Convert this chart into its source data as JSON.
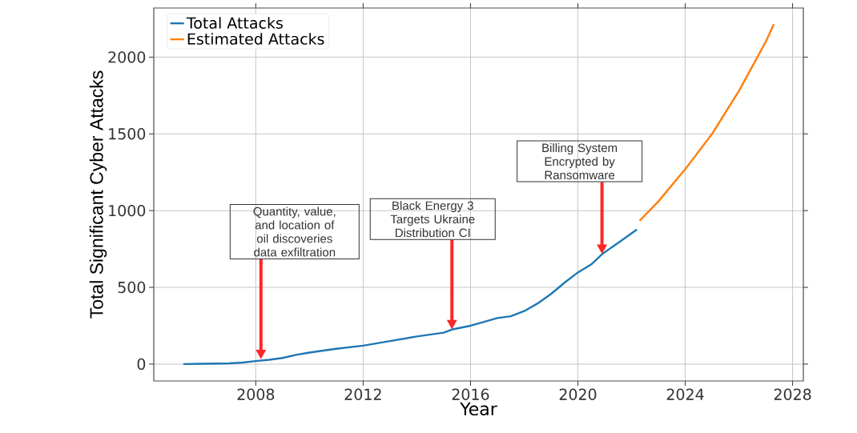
{
  "chart_data": {
    "type": "line",
    "xlabel": "Year",
    "ylabel": "Total Significant Cyber Attacks",
    "xlim": [
      2004.2,
      2028.4
    ],
    "ylim": [
      -110,
      2320
    ],
    "xticks": [
      2008,
      2012,
      2016,
      2020,
      2024,
      2028
    ],
    "yticks": [
      0,
      500,
      1000,
      1500,
      2000
    ],
    "grid": true,
    "legend": "top left",
    "series": [
      {
        "name": "Total Attacks",
        "color": "#1f77b4",
        "x": [
          2005.3,
          2006,
          2007,
          2007.5,
          2008,
          2008.5,
          2009,
          2009.5,
          2010,
          2011,
          2012,
          2013,
          2014,
          2015,
          2015.3,
          2016,
          2016.4,
          2017,
          2017.5,
          2018,
          2018.5,
          2019,
          2019.5,
          2020,
          2020.5,
          2020.9,
          2021.5,
          2022.2
        ],
        "values": [
          0,
          2,
          5,
          10,
          20,
          28,
          40,
          60,
          75,
          100,
          120,
          150,
          180,
          205,
          225,
          250,
          270,
          300,
          312,
          345,
          395,
          457,
          530,
          597,
          650,
          716,
          790,
          877
        ]
      },
      {
        "name": "Estimated Attacks",
        "color": "#ff7f0e",
        "x": [
          2022.3,
          2023,
          2024,
          2025,
          2026,
          2027,
          2027.3
        ],
        "values": [
          934,
          1060,
          1270,
          1500,
          1780,
          2100,
          2215
        ]
      }
    ],
    "annotations": [
      "Quantity, value, and location of oil discoveries data exfiltration",
      "Black Energy 3 Targets Ukraine Distribution CI",
      "Billing System Encrypted by Ransomware"
    ]
  }
}
